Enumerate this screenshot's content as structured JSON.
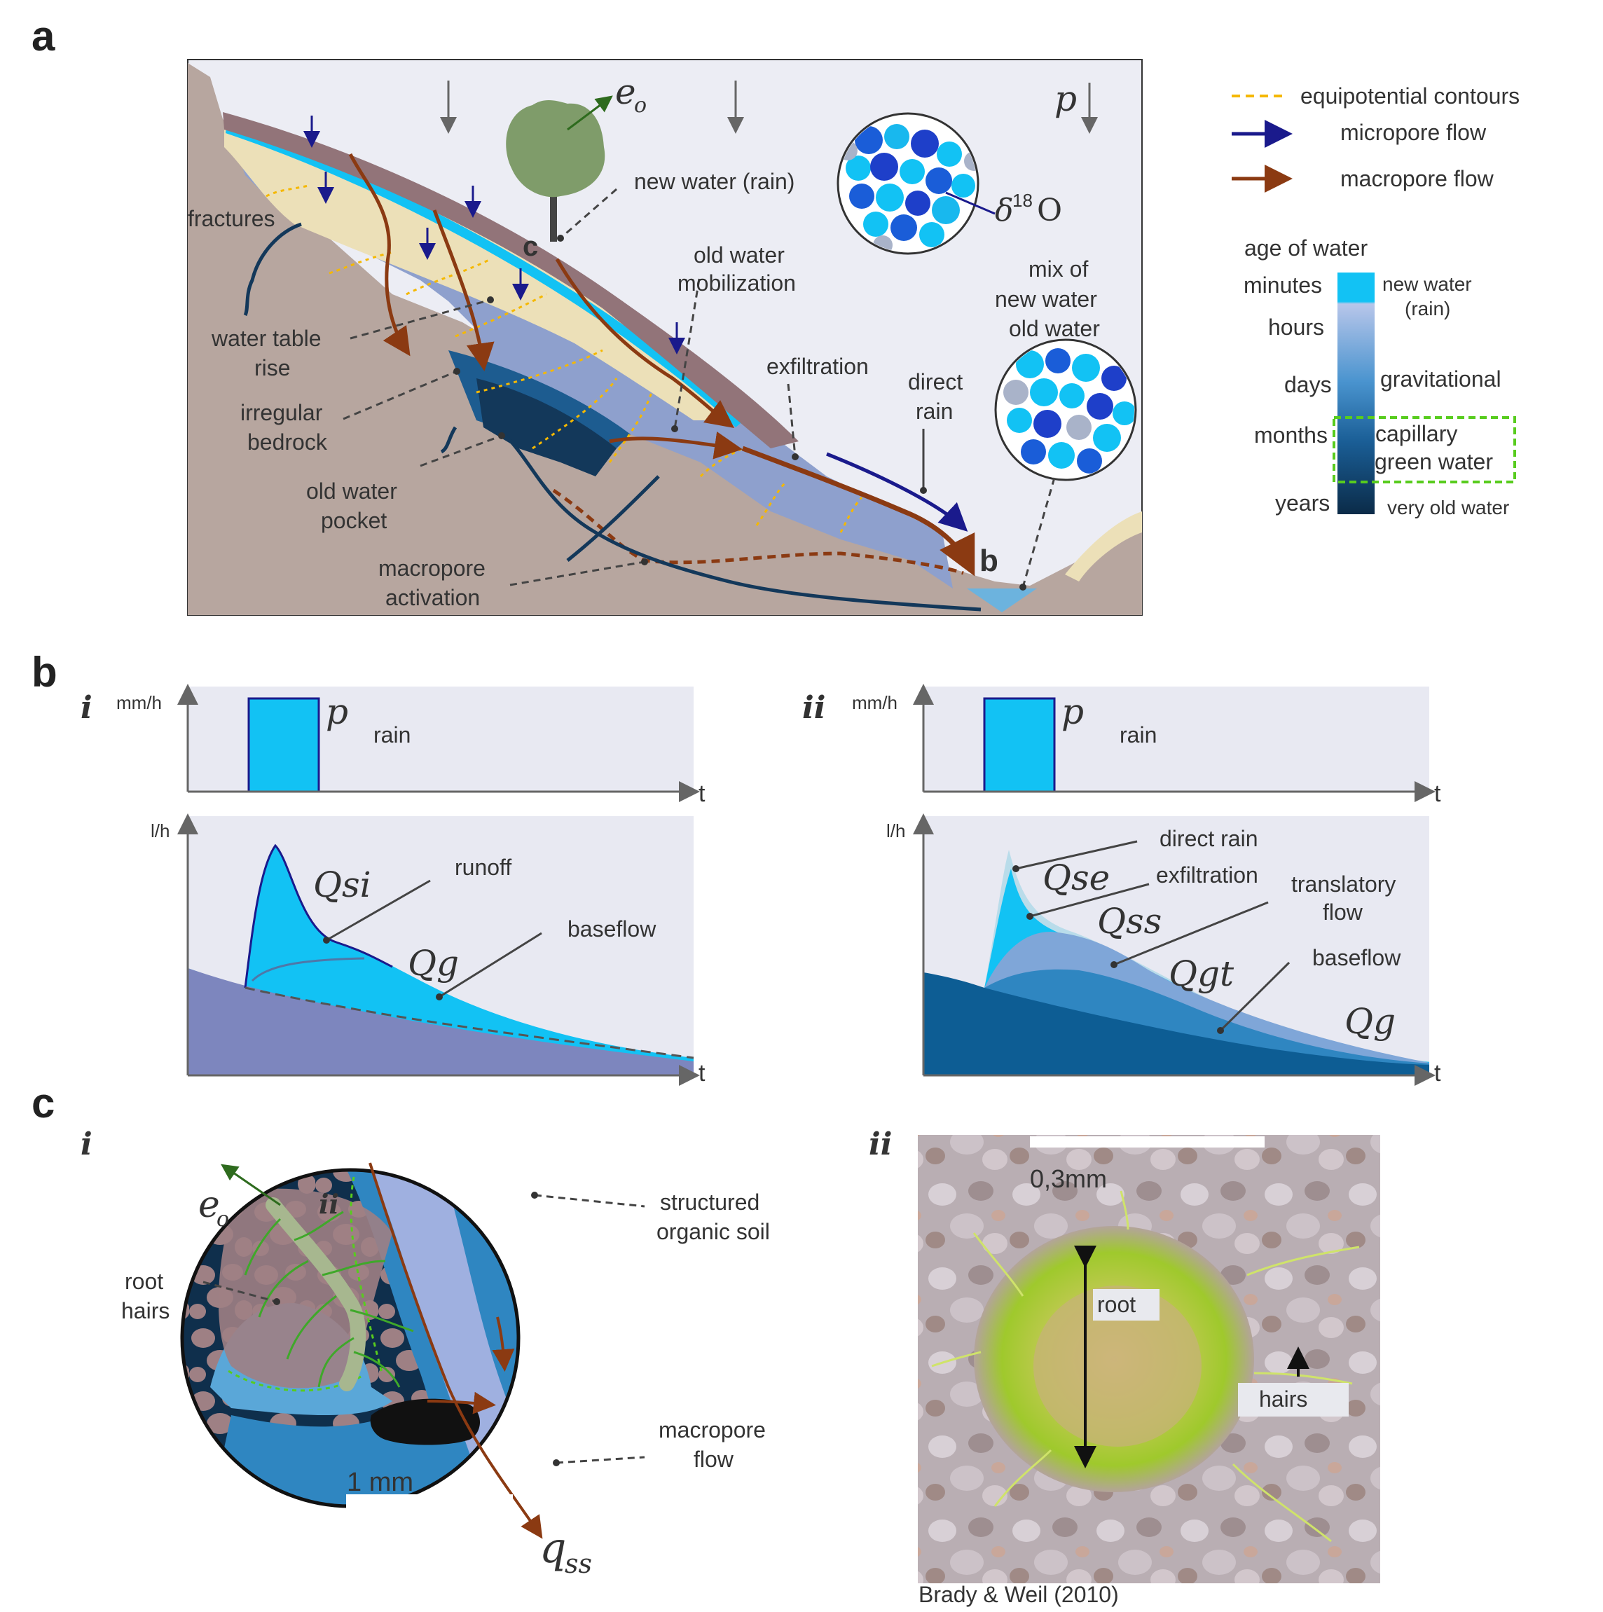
{
  "panel_labels": {
    "a": "a",
    "b": "b",
    "c": "c"
  },
  "sub_labels": {
    "bi": "i",
    "bii": "ii",
    "ci": "i",
    "cii": "ii"
  },
  "a": {
    "evap": "e",
    "evap_sub": "o",
    "precip": "p",
    "new_water": "new water (rain)",
    "isotope": "δ",
    "isotope_sup": "18",
    "isotope_elem": "O",
    "fractures": "fractures",
    "old_water_mob": [
      "old water",
      "mobilization"
    ],
    "mix": [
      "mix of",
      "new water",
      "old water"
    ],
    "water_table": [
      "water table",
      "rise"
    ],
    "exfiltration": "exfiltration",
    "direct_rain": [
      "direct",
      "rain"
    ],
    "irregular_bedrock": [
      "irregular",
      "bedrock"
    ],
    "old_pocket": [
      "old water",
      "pocket"
    ],
    "macropore_act": [
      "macropore",
      "activation"
    ],
    "marker_b": "b",
    "marker_c": "c"
  },
  "legend": {
    "equipotential": "equipotential contours",
    "micropore": "micropore flow",
    "macropore": "macropore flow",
    "age_title": "age of water",
    "ages": [
      "minutes",
      "hours",
      "days",
      "months",
      "years"
    ],
    "classes": {
      "new": [
        "new water",
        "(rain)"
      ],
      "gravitational": "gravitational",
      "capillary": "capillary",
      "green": "green water",
      "very_old": "very old water"
    },
    "colors": {
      "new": "#12c2f4",
      "grav": "#2b8ec8",
      "old": "#0d3a5c",
      "green": "#58cc1e",
      "orange": "#f5b800",
      "navy": "#1a1a8c",
      "brown": "#8b3a12"
    }
  },
  "b": {
    "i": {
      "ylabel_top": "mm/h",
      "ylabel_bottom": "l/h",
      "xlabel": "t",
      "p": "p",
      "rain": "rain",
      "Qsi": "Qsi",
      "Qg": "Qg",
      "runoff": "runoff",
      "baseflow": "baseflow"
    },
    "ii": {
      "ylabel_top": "mm/h",
      "ylabel_bottom": "l/h",
      "xlabel": "t",
      "p": "p",
      "rain": "rain",
      "Qse": "Qse",
      "Qss": "Qss",
      "Qgt": "Qgt",
      "Qg": "Qg",
      "direct_rain": "direct rain",
      "exfiltration": "exfiltration",
      "translatory": [
        "translatory",
        "flow"
      ],
      "baseflow": "baseflow"
    }
  },
  "c": {
    "i": {
      "evap": "e",
      "evap_sub": "o",
      "ii_mark": "ii",
      "root_hairs": [
        "root",
        "hairs"
      ],
      "structured": [
        "structured",
        "organic soil"
      ],
      "macropore_flow": [
        "macropore",
        "flow"
      ],
      "scale": "1 mm",
      "q": "q",
      "q_sub": "ss"
    },
    "ii": {
      "scale": "0,3mm",
      "root": "root",
      "hairs": "hairs",
      "credit": "Brady & Weil (2010)"
    }
  }
}
